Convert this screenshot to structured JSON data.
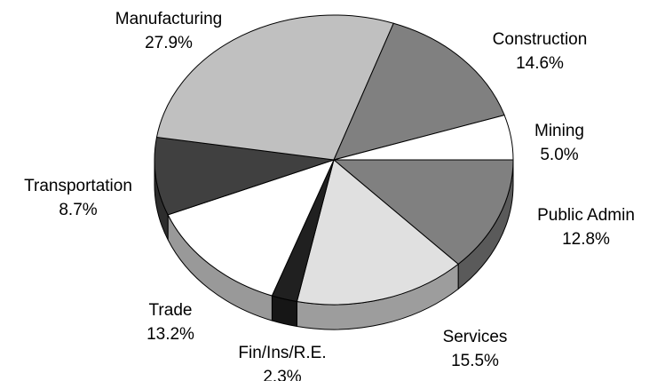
{
  "chart_data": {
    "type": "pie3d",
    "categories": [
      "Public Admin",
      "Services",
      "Fin/Ins/R.E.",
      "Trade",
      "Transportation",
      "Manufacturing",
      "Construction",
      "Mining"
    ],
    "values": [
      12.8,
      15.5,
      2.3,
      13.2,
      8.7,
      27.9,
      14.6,
      5.0
    ],
    "value_labels": [
      "12.8%",
      "15.5%",
      "2.3%",
      "13.2%",
      "8.7%",
      "27.9%",
      "14.6%",
      "5.0%"
    ],
    "colors": [
      "#808080",
      "#e0e0e0",
      "#202020",
      "#ffffff",
      "#404040",
      "#c0c0c0",
      "#808080",
      "#ffffff"
    ]
  }
}
